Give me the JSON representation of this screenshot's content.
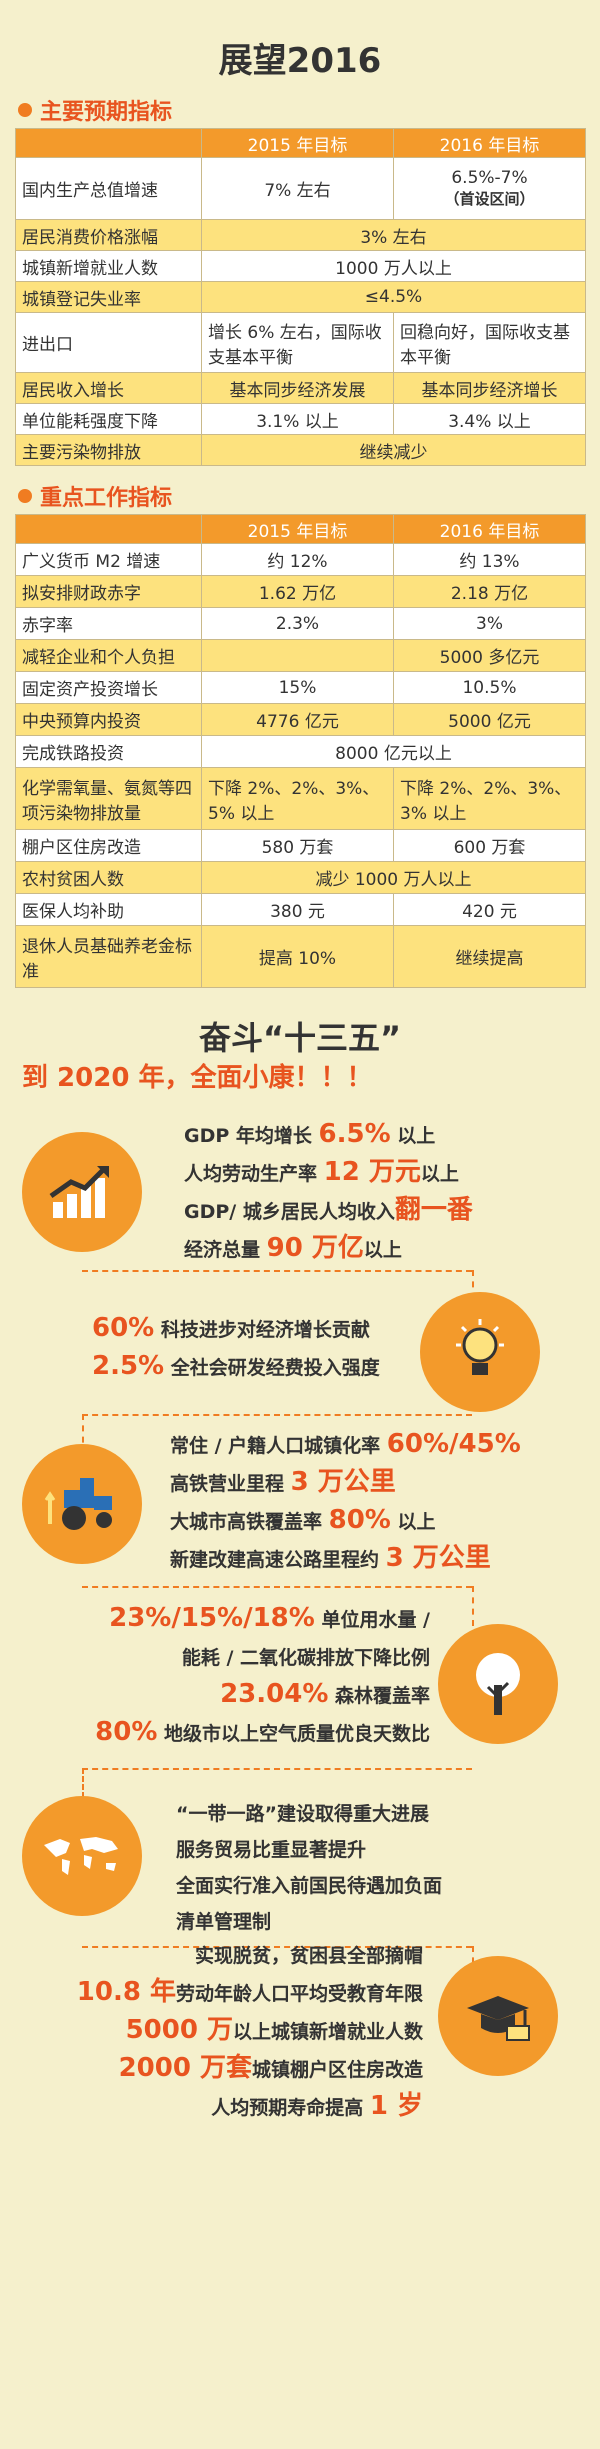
{
  "title": "展望2016",
  "section1": {
    "heading": "主要预期指标",
    "col2015": "2015 年目标",
    "col2016": "2016 年目标",
    "rows": [
      {
        "label": "国内生产总值增速",
        "v2015": "7% 左右",
        "v2016": "6.5%-7%",
        "v2016_note": "（首设区间）"
      },
      {
        "label": "居民消费价格涨幅",
        "merged": "3% 左右"
      },
      {
        "label": "城镇新增就业人数",
        "merged": "1000 万人以上"
      },
      {
        "label": "城镇登记失业率",
        "merged": "≤4.5%"
      },
      {
        "label": "进出口",
        "v2015": "增长 6% 左右，国际收支基本平衡",
        "v2016": "回稳向好，国际收支基本平衡"
      },
      {
        "label": "居民收入增长",
        "v2015": "基本同步经济发展",
        "v2016": "基本同步经济增长"
      },
      {
        "label": "单位能耗强度下降",
        "v2015": "3.1% 以上",
        "v2016": "3.4% 以上"
      },
      {
        "label": "主要污染物排放",
        "merged": "继续减少"
      }
    ]
  },
  "section2": {
    "heading": "重点工作指标",
    "col2015": "2015 年目标",
    "col2016": "2016 年目标",
    "rows": [
      {
        "label": "广义货币 M2 增速",
        "v2015": "约 12%",
        "v2016": "约 13%"
      },
      {
        "label": "拟安排财政赤字",
        "v2015": "1.62 万亿",
        "v2016": "2.18 万亿"
      },
      {
        "label": "赤字率",
        "v2015": "2.3%",
        "v2016": "3%"
      },
      {
        "label": "减轻企业和个人负担",
        "v2015": "",
        "v2016": "5000 多亿元"
      },
      {
        "label": "固定资产投资增长",
        "v2015": "15%",
        "v2016": "10.5%"
      },
      {
        "label": "中央预算内投资",
        "v2015": "4776 亿元",
        "v2016": "5000 亿元"
      },
      {
        "label": "完成铁路投资",
        "merged": "8000 亿元以上"
      },
      {
        "label": "化学需氧量、氨氮等四项污染物排放量",
        "v2015": "下降 2%、2%、3%、5% 以上",
        "v2016": "下降 2%、2%、3%、3% 以上"
      },
      {
        "label": "棚户区住房改造",
        "v2015": "580 万套",
        "v2016": "600 万套"
      },
      {
        "label": "农村贫困人数",
        "merged": "减少 1000 万人以上"
      },
      {
        "label": "医保人均补助",
        "v2015": "380 元",
        "v2016": "420 元"
      },
      {
        "label": "退休人员基础养老金标准",
        "v2015": "提高 10%",
        "v2016": "继续提高"
      }
    ]
  },
  "plan": {
    "title": "奋斗“十三五”",
    "slogan": "到 2020 年，全面小康！！！",
    "b1": [
      {
        "pre": "GDP 年均增长 ",
        "big": "6.5%",
        "post": " 以上"
      },
      {
        "pre": "人均劳动生产率 ",
        "big": "12 万元",
        "post": "以上"
      },
      {
        "pre": "GDP/ 城乡居民人均收入",
        "big": "翻一番",
        "post": ""
      },
      {
        "pre": "经济总量 ",
        "big": "90 万亿",
        "post": "以上"
      }
    ],
    "b2": [
      {
        "pre": "",
        "big": "60%",
        "post": " 科技进步对经济增长贡献"
      },
      {
        "pre": "",
        "big": "2.5%",
        "post": " 全社会研发经费投入强度"
      }
    ],
    "b3": [
      {
        "pre": "常住 / 户籍人口城镇化率 ",
        "big": "60%/45%",
        "post": ""
      },
      {
        "pre": "高铁营业里程 ",
        "big": "3 万公里",
        "post": ""
      },
      {
        "pre": "大城市高铁覆盖率 ",
        "big": "80%",
        "post": " 以上"
      },
      {
        "pre": "新建改建高速公路里程约 ",
        "big": "3 万公里",
        "post": ""
      }
    ],
    "b4": [
      {
        "pre": "",
        "big": "23%/15%/18%",
        "post": " 单位用水量 /"
      },
      {
        "pre": "能耗 / 二氧化碳排放下降比例",
        "big": "",
        "post": ""
      },
      {
        "pre": "",
        "big": "23.04%",
        "post": " 森林覆盖率"
      },
      {
        "pre": "",
        "big": "80%",
        "post": " 地级市以上空气质量优良天数比"
      }
    ],
    "b5": [
      {
        "pre": "“一带一路”建设取得重大进展",
        "big": "",
        "post": ""
      },
      {
        "pre": "服务贸易比重显著提升",
        "big": "",
        "post": ""
      },
      {
        "pre": "全面实行准入前国民待遇加负面",
        "big": "",
        "post": ""
      },
      {
        "pre": "清单管理制",
        "big": "",
        "post": ""
      }
    ],
    "b6": [
      {
        "pre": "实现脱贫，贫困县全部摘帽",
        "big": "",
        "post": ""
      },
      {
        "pre": "",
        "big": "10.8 年",
        "post": "劳动年龄人口平均受教育年限"
      },
      {
        "pre": "",
        "big": "5000 万",
        "post": "以上城镇新增就业人数"
      },
      {
        "pre": "",
        "big": "2000 万套",
        "post": "城镇棚户区住房改造"
      },
      {
        "pre": "人均预期寿命提高 ",
        "big": "1 岁",
        "post": ""
      }
    ]
  },
  "icons": {
    "b1": "growth-chart-icon",
    "b2": "lightbulb-icon",
    "b3": "tractor-icon",
    "b4": "tree-icon",
    "b5": "world-map-icon",
    "b6": "graduation-cap-icon"
  }
}
